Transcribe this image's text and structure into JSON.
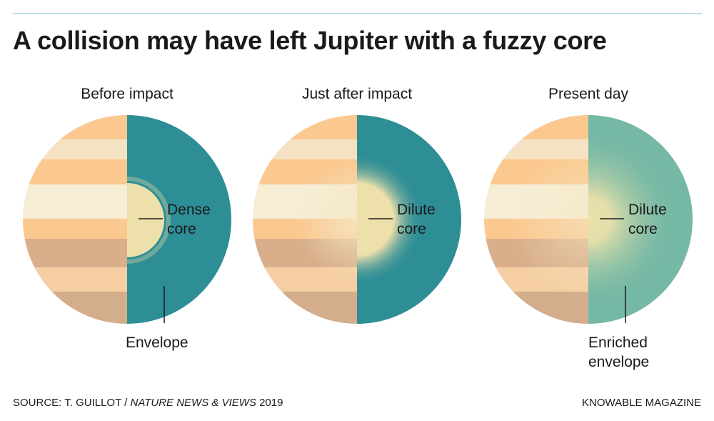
{
  "title": "A collision may have left Jupiter with a fuzzy core",
  "panels": [
    {
      "heading": "Before impact",
      "core_label_line1": "Dense",
      "core_label_line2": "core",
      "envelope_label_line1": "Envelope",
      "envelope_label_line2": ""
    },
    {
      "heading": "Just after impact",
      "core_label_line1": "Dilute",
      "core_label_line2": "core",
      "envelope_label_line1": "",
      "envelope_label_line2": ""
    },
    {
      "heading": "Present day",
      "core_label_line1": "Dilute",
      "core_label_line2": "core",
      "envelope_label_line1": "Enriched",
      "envelope_label_line2": "envelope"
    }
  ],
  "source": {
    "prefix": "SOURCE: T. GUILLOT / ",
    "publication": "NATURE NEWS & VIEWS",
    "year": " 2019"
  },
  "credit": "KNOWABLE MAGAZINE",
  "colors": {
    "band_orange": "#fbc88f",
    "band_cream": "#f5e2c3",
    "band_pale": "#f7edd5",
    "band_tan": "#d9ae8a",
    "band_brown": "#c9a284",
    "teal": "#2e8e96",
    "teal_light": "#74b8a5",
    "core": "#ede0aa"
  }
}
